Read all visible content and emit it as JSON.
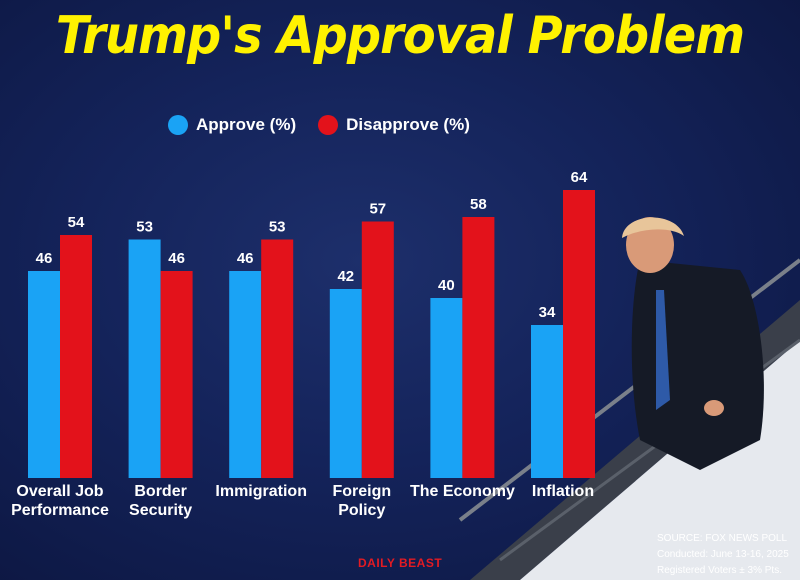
{
  "chart_data": {
    "type": "bar",
    "title": "Trump's Approval Problem",
    "categories": [
      [
        "Overall Job",
        "Performance"
      ],
      [
        "Border",
        "Security"
      ],
      [
        "Immigration"
      ],
      [
        "Foreign",
        "Policy"
      ],
      [
        "The Economy"
      ],
      [
        "Inflation"
      ]
    ],
    "series": [
      {
        "name": "Approve (%)",
        "color": "#1aa3f5",
        "values": [
          46,
          53,
          46,
          42,
          40,
          34
        ]
      },
      {
        "name": "Disapprove (%)",
        "color": "#e3121b",
        "values": [
          54,
          46,
          53,
          57,
          58,
          64
        ]
      }
    ],
    "ylim": [
      0,
      100
    ],
    "xlabel": "",
    "ylabel": "",
    "legend": "top-left",
    "grid": false
  },
  "source": {
    "line1": "SOURCE: FOX NEWS POLL",
    "line2": "Conducted: June 13-16, 2025",
    "line3": "Registered Voters ± 3% Pts."
  },
  "brand": "DAILY BEAST",
  "colors": {
    "title": "#fff200",
    "approve": "#1aa3f5",
    "disapprove": "#e3121b"
  }
}
